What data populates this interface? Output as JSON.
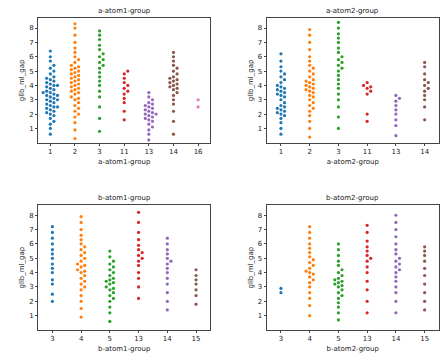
{
  "chart_data": [
    {
      "type": "swarm",
      "title": "a-atom1-group",
      "x_label": "a-atom1-group",
      "y_label": "gllb_ml_gap",
      "categories": [
        "1",
        "2",
        "3",
        "11",
        "13",
        "14",
        "16"
      ],
      "colors": [
        "#1f77b4",
        "#ff7f0e",
        "#2ca02c",
        "#d62728",
        "#9467bd",
        "#8c564b",
        "#e377c2"
      ],
      "values": [
        [
          0.6,
          1.0,
          1.3,
          1.5,
          1.7,
          1.9,
          2.0,
          2.1,
          2.2,
          2.3,
          2.4,
          2.5,
          2.5,
          2.6,
          2.7,
          2.8,
          2.9,
          3.0,
          3.0,
          3.1,
          3.2,
          3.3,
          3.3,
          3.4,
          3.5,
          3.5,
          3.6,
          3.7,
          3.8,
          3.9,
          4.0,
          4.0,
          4.1,
          4.2,
          4.3,
          4.4,
          4.5,
          4.6,
          4.8,
          5.0,
          5.2,
          5.4,
          5.7,
          6.0,
          6.4
        ],
        [
          0.3,
          0.9,
          1.4,
          1.8,
          2.0,
          2.2,
          2.4,
          2.6,
          2.8,
          3.0,
          3.1,
          3.2,
          3.4,
          3.5,
          3.6,
          3.7,
          3.8,
          3.9,
          4.0,
          4.1,
          4.2,
          4.3,
          4.4,
          4.5,
          4.6,
          4.7,
          4.8,
          4.9,
          5.0,
          5.1,
          5.2,
          5.3,
          5.4,
          5.6,
          5.8,
          6.0,
          6.3,
          6.6,
          7.0,
          7.5,
          8.0,
          8.3
        ],
        [
          0.8,
          1.7,
          2.5,
          3.2,
          3.6,
          4.0,
          4.3,
          4.6,
          4.9,
          5.2,
          5.4,
          5.6,
          5.8,
          6.0,
          6.2,
          6.5,
          6.8,
          7.2,
          7.5,
          7.8
        ],
        [
          1.6,
          2.2,
          2.8,
          3.1,
          3.4,
          3.6,
          3.8,
          4.0,
          4.2,
          4.5,
          4.8,
          5.0
        ],
        [
          0.2,
          0.6,
          0.9,
          1.1,
          1.3,
          1.5,
          1.6,
          1.7,
          1.8,
          1.9,
          2.0,
          2.0,
          2.1,
          2.2,
          2.3,
          2.4,
          2.5,
          2.6,
          2.7,
          2.8,
          3.0,
          3.2,
          3.5
        ],
        [
          0.6,
          1.5,
          2.2,
          2.7,
          3.0,
          3.3,
          3.5,
          3.7,
          3.8,
          3.9,
          4.0,
          4.1,
          4.2,
          4.3,
          4.4,
          4.5,
          4.6,
          4.8,
          5.0,
          5.2,
          5.4,
          5.7,
          6.0,
          6.3
        ],
        [
          3.0,
          2.5
        ]
      ],
      "ylim": [
        0,
        8.7
      ],
      "yticks": [
        1,
        2,
        3,
        4,
        5,
        6,
        7,
        8
      ]
    },
    {
      "type": "swarm",
      "title": "a-atom2-group",
      "x_label": "a-atom2-group",
      "y_label": "gllb_ml_gap",
      "categories": [
        "1",
        "2",
        "3",
        "11",
        "13",
        "14"
      ],
      "colors": [
        "#1f77b4",
        "#ff7f0e",
        "#2ca02c",
        "#d62728",
        "#9467bd",
        "#8c564b"
      ],
      "values": [
        [
          0.6,
          1.0,
          1.4,
          1.7,
          1.9,
          2.0,
          2.1,
          2.2,
          2.3,
          2.4,
          2.5,
          2.6,
          2.8,
          3.0,
          3.2,
          3.3,
          3.4,
          3.5,
          3.6,
          3.7,
          3.8,
          3.9,
          4.0,
          4.2,
          4.4,
          4.6,
          4.8,
          5.0,
          5.3,
          5.7,
          6.2
        ],
        [
          0.4,
          1.0,
          1.5,
          1.9,
          2.2,
          2.4,
          2.6,
          2.8,
          3.0,
          3.2,
          3.3,
          3.5,
          3.6,
          3.7,
          3.8,
          3.9,
          4.0,
          4.1,
          4.2,
          4.3,
          4.4,
          4.6,
          4.8,
          5.0,
          5.2,
          5.4,
          5.7,
          6.0,
          6.5,
          7.0,
          7.5,
          7.9
        ],
        [
          1.0,
          1.8,
          2.5,
          3.0,
          3.4,
          3.8,
          4.1,
          4.4,
          4.7,
          5.0,
          5.2,
          5.4,
          5.6,
          5.8,
          6.0,
          6.3,
          6.6,
          7.0,
          7.3,
          7.6,
          8.0,
          8.4
        ],
        [
          1.5,
          2.0,
          3.4,
          3.6,
          3.8,
          3.9,
          4.0,
          4.2
        ],
        [
          0.5,
          1.2,
          1.6,
          2.0,
          2.3,
          2.6,
          2.9,
          3.1,
          3.3
        ],
        [
          1.6,
          2.5,
          3.0,
          3.3,
          3.6,
          3.8,
          4.0,
          4.2,
          4.4,
          4.8,
          5.3,
          5.6
        ]
      ],
      "ylim": [
        0,
        8.7
      ],
      "yticks": [
        1,
        2,
        3,
        4,
        5,
        6,
        7,
        8
      ]
    },
    {
      "type": "swarm",
      "title": "b-atom1-group",
      "x_label": "b-atom1-group",
      "y_label": "gllb_ml_gap",
      "categories": [
        "3",
        "4",
        "5",
        "13",
        "14",
        "15"
      ],
      "colors": [
        "#1f77b4",
        "#ff7f0e",
        "#2ca02c",
        "#d62728",
        "#9467bd",
        "#8c564b"
      ],
      "values": [
        [
          2.0,
          2.5,
          3.2,
          3.5,
          4.0,
          4.3,
          4.6,
          5.0,
          5.3,
          5.6,
          6.0,
          6.4,
          6.8,
          7.2
        ],
        [
          0.9,
          1.5,
          2.0,
          2.4,
          2.8,
          3.0,
          3.2,
          3.4,
          3.6,
          3.8,
          4.0,
          4.1,
          4.2,
          4.4,
          4.5,
          4.6,
          4.8,
          5.0,
          5.2,
          5.4,
          5.6,
          5.8,
          6.0,
          6.3,
          6.6,
          7.0,
          7.5,
          7.9
        ],
        [
          0.6,
          1.2,
          1.6,
          2.0,
          2.2,
          2.4,
          2.6,
          2.8,
          2.9,
          3.0,
          3.2,
          3.3,
          3.4,
          3.5,
          3.6,
          3.8,
          4.0,
          4.2,
          4.4,
          4.6,
          4.8,
          5.1,
          5.5
        ],
        [
          2.2,
          3.0,
          3.6,
          4.0,
          4.5,
          4.8,
          5.0,
          5.2,
          5.4,
          5.6,
          5.9,
          6.3,
          6.8,
          7.5,
          8.2
        ],
        [
          1.4,
          2.0,
          2.6,
          3.2,
          3.6,
          4.0,
          4.3,
          4.6,
          4.8,
          5.0,
          5.3,
          5.6,
          6.0,
          6.4
        ],
        [
          1.8,
          2.4,
          2.8,
          3.2,
          3.5,
          3.8,
          4.2
        ]
      ],
      "ylim": [
        0,
        8.7
      ],
      "yticks": [
        1,
        2,
        3,
        4,
        5,
        6,
        7,
        8
      ]
    },
    {
      "type": "swarm",
      "title": "b-atom2-group",
      "x_label": "b-atom2-group",
      "y_label": "gllb_ml_gap",
      "categories": [
        "3",
        "4",
        "5",
        "13",
        "14",
        "15"
      ],
      "colors": [
        "#1f77b4",
        "#ff7f0e",
        "#2ca02c",
        "#d62728",
        "#9467bd",
        "#8c564b"
      ],
      "values": [
        [
          2.6,
          2.9
        ],
        [
          1.0,
          1.7,
          2.2,
          2.6,
          3.0,
          3.3,
          3.5,
          3.7,
          3.9,
          4.0,
          4.1,
          4.3,
          4.5,
          4.7,
          4.9,
          5.1,
          5.4,
          5.7,
          6.0,
          6.4,
          6.8,
          7.2
        ],
        [
          0.7,
          1.2,
          1.6,
          1.9,
          2.2,
          2.4,
          2.6,
          2.8,
          3.0,
          3.1,
          3.2,
          3.3,
          3.4,
          3.5,
          3.6,
          3.8,
          4.0,
          4.2,
          4.5,
          4.8,
          5.2,
          5.6,
          6.0
        ],
        [
          1.2,
          2.0,
          2.8,
          3.4,
          4.0,
          4.4,
          4.8,
          5.0,
          5.2,
          5.5,
          5.8,
          6.2,
          6.8,
          7.3
        ],
        [
          1.2,
          2.0,
          2.6,
          3.0,
          3.4,
          3.7,
          4.0,
          4.2,
          4.4,
          4.6,
          4.8,
          5.0,
          5.3,
          5.6,
          6.0,
          6.5,
          7.0,
          7.5,
          8.0
        ],
        [
          1.4,
          2.0,
          2.6,
          3.2,
          3.8,
          4.3,
          4.8,
          5.2,
          5.5,
          5.8
        ]
      ],
      "ylim": [
        0,
        8.7
      ],
      "yticks": [
        1,
        2,
        3,
        4,
        5,
        6,
        7,
        8
      ]
    }
  ]
}
